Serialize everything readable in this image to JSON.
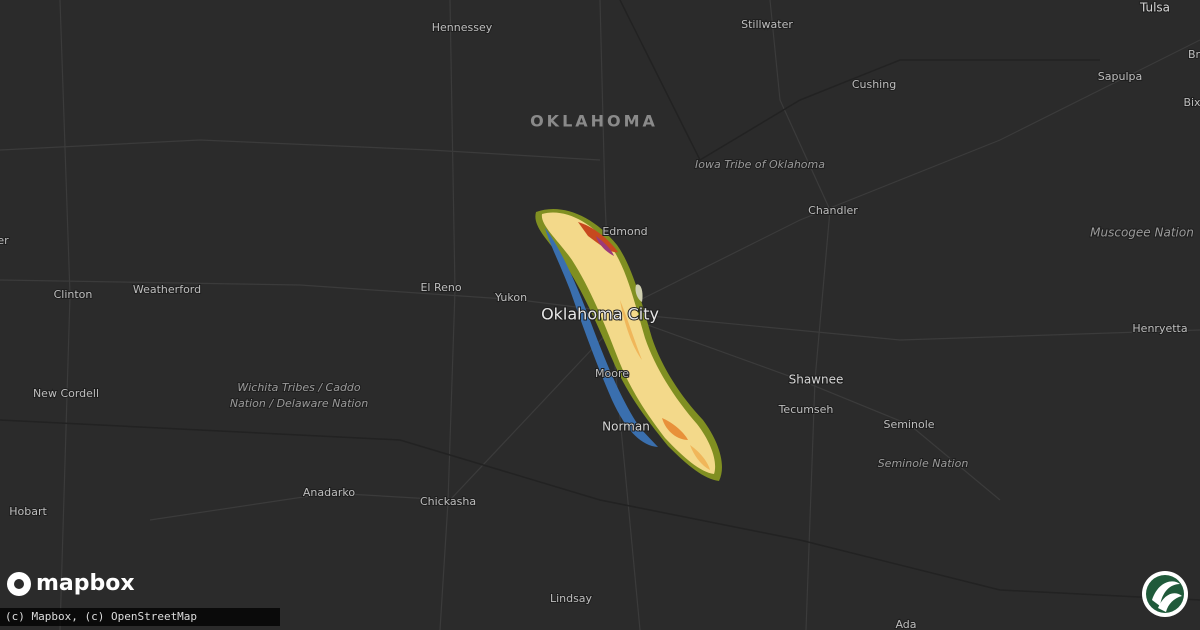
{
  "map": {
    "state_label": "OKLAHOMA",
    "places": [
      "Hennessey",
      "Stillwater",
      "Tulsa",
      "Cushing",
      "Sapulpa",
      "Br",
      "Bix",
      "Iowa Tribe of Oklahoma",
      "Chandler",
      "Muscogee Nation",
      "er",
      "Edmond",
      "El Reno",
      "Yukon",
      "Oklahoma City",
      "Clinton",
      "Weatherford",
      "Henryetta",
      "Shawnee",
      "Tecumseh",
      "Seminole",
      "Seminole Nation",
      "New Cordell",
      "Wichita Tribes / Caddo",
      "Nation / Delaware Nation",
      "Moore",
      "Norman",
      "Anadarko",
      "Chickasha",
      "Hobart",
      "Lindsay",
      "Ada"
    ],
    "logo": "mapbox",
    "attribution": "(c) Mapbox, (c) OpenStreetMap"
  }
}
